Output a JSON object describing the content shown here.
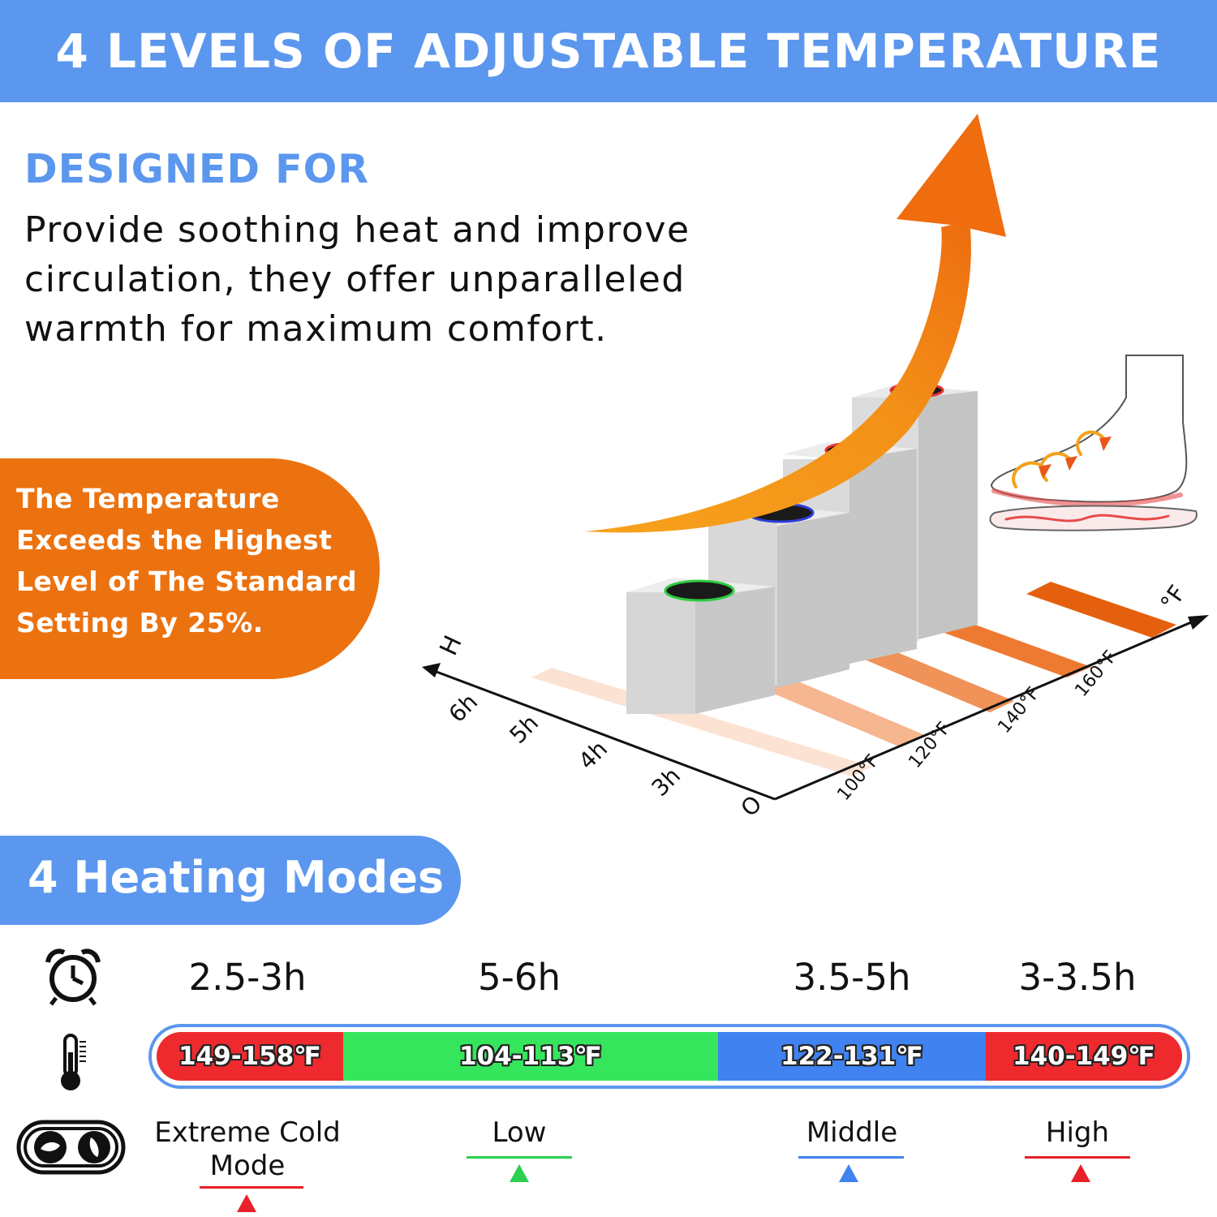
{
  "header": {
    "title": "4 LEVELS OF ADJUSTABLE TEMPERATURE"
  },
  "designed": {
    "title": "DESIGNED FOR",
    "lines": [
      "Provide soothing heat and improve",
      "circulation, they offer unparalleled",
      "warmth for maximum comfort."
    ]
  },
  "callout": {
    "lines": [
      "The Temperature",
      "Exceeds the Highest",
      "Level of The Standard",
      "Setting By 25%."
    ]
  },
  "illustration": {
    "time_axis": {
      "unit": "H",
      "origin": "O",
      "ticks": [
        "6h",
        "5h",
        "4h",
        "3h"
      ]
    },
    "temp_axis": {
      "unit": "°F",
      "ticks": [
        "100°F",
        "120°F",
        "140°F",
        "160°F"
      ]
    },
    "level_colors": [
      "#2ecc40",
      "#2a3fd8",
      "#e83030",
      "#e83030"
    ]
  },
  "modes": {
    "title": "4 Heating Modes",
    "items": [
      {
        "duration": "2.5-3h",
        "temp": "149-158℉",
        "label_lines": [
          "Extreme Cold",
          "Mode"
        ],
        "color": "#ee2a2e",
        "marker": "#e8202a"
      },
      {
        "duration": "5-6h",
        "temp": "104-113℉",
        "label_lines": [
          "Low"
        ],
        "color": "#35e65c",
        "marker": "#2bd04f"
      },
      {
        "duration": "3.5-5h",
        "temp": "122-131℉",
        "label_lines": [
          "Middle"
        ],
        "color": "#3f82f0",
        "marker": "#3f82f0"
      },
      {
        "duration": "3-3.5h",
        "temp": "140-149℉",
        "label_lines": [
          "High"
        ],
        "color": "#ee2a2e",
        "marker": "#e8202a"
      }
    ]
  },
  "icons": [
    "alarm-clock-icon",
    "thermometer-icon",
    "heat-mode-button-icon",
    "foot-icon",
    "up-arrow-icon"
  ]
}
